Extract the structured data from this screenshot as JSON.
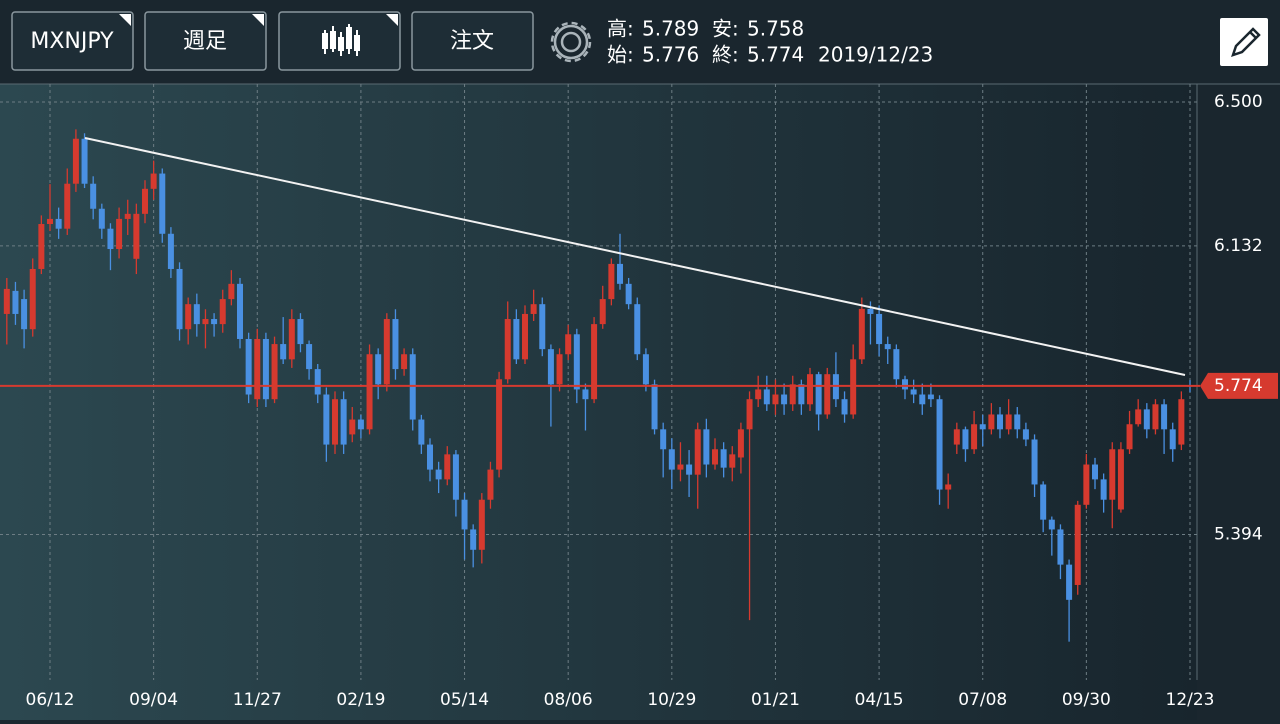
{
  "header": {
    "symbol": "MXNJPY",
    "period": "週足",
    "order": "注文",
    "high": {
      "label": "高:",
      "value": "5.789"
    },
    "low": {
      "label": "安:",
      "value": "5.758"
    },
    "open": {
      "label": "始:",
      "value": "5.776"
    },
    "close": {
      "label": "終:",
      "value": "5.774"
    },
    "date": "2019/12/23"
  },
  "chart_data": {
    "type": "candlestick",
    "categories": [
      null,
      null,
      null,
      null,
      null,
      "06/12",
      null,
      null,
      null,
      null,
      null,
      null,
      null,
      null,
      null,
      null,
      null,
      "09/04",
      null,
      null,
      null,
      null,
      null,
      null,
      null,
      null,
      null,
      null,
      null,
      "11/27",
      null,
      null,
      null,
      null,
      null,
      null,
      null,
      null,
      null,
      null,
      null,
      "02/19",
      null,
      null,
      null,
      null,
      null,
      null,
      null,
      null,
      null,
      null,
      null,
      "05/14",
      null,
      null,
      null,
      null,
      null,
      null,
      null,
      null,
      null,
      null,
      null,
      "08/06",
      null,
      null,
      null,
      null,
      null,
      null,
      null,
      null,
      null,
      null,
      null,
      "10/29",
      null,
      null,
      null,
      null,
      null,
      null,
      null,
      null,
      null,
      null,
      null,
      "01/21",
      null,
      null,
      null,
      null,
      null,
      null,
      null,
      null,
      null,
      null,
      null,
      "04/15",
      null,
      null,
      null,
      null,
      null,
      null,
      null,
      null,
      null,
      null,
      null,
      "07/08",
      null,
      null,
      null,
      null,
      null,
      null,
      null,
      null,
      null,
      null,
      null,
      "09/30",
      null,
      null,
      null,
      null,
      null,
      null,
      null,
      null,
      null,
      null,
      null,
      "12/23"
    ],
    "open": [
      5.958,
      6.017,
      5.996,
      5.919,
      6.073,
      6.188,
      6.201,
      6.176,
      6.291,
      6.406,
      6.291,
      6.227,
      6.176,
      6.124,
      6.201,
      6.099,
      6.214,
      6.278,
      6.317,
      6.163,
      6.073,
      5.919,
      5.983,
      5.932,
      5.945,
      5.932,
      5.996,
      6.035,
      5.894,
      5.74,
      5.894,
      5.74,
      5.881,
      5.842,
      5.945,
      5.881,
      5.817,
      5.752,
      5.624,
      5.74,
      5.65,
      5.688,
      5.663,
      5.855,
      5.778,
      5.945,
      5.817,
      5.855,
      5.688,
      5.624,
      5.56,
      5.535,
      5.599,
      5.483,
      5.407,
      5.355,
      5.483,
      5.56,
      5.791,
      5.945,
      5.842,
      5.958,
      5.983,
      5.868,
      5.778,
      5.855,
      5.906,
      5.765,
      5.74,
      5.932,
      5.996,
      6.086,
      6.035,
      5.983,
      5.855,
      5.778,
      5.663,
      5.612,
      5.56,
      5.573,
      5.547,
      5.663,
      5.573,
      5.612,
      5.565,
      5.591,
      5.663,
      5.74,
      5.765,
      5.727,
      5.752,
      5.727,
      5.778,
      5.727,
      5.804,
      5.701,
      5.804,
      5.74,
      5.701,
      5.842,
      5.971,
      5.958,
      5.881,
      5.868,
      5.791,
      5.765,
      5.752,
      5.752,
      5.74,
      5.509,
      5.624,
      5.663,
      5.612,
      5.676,
      5.663,
      5.701,
      5.663,
      5.701,
      5.663,
      5.637,
      5.522,
      5.432,
      5.407,
      5.317,
      5.265,
      5.47,
      5.573,
      5.535,
      5.483,
      5.458,
      5.612,
      5.676,
      5.714,
      5.663,
      5.727,
      5.663,
      5.624,
      5.776
    ],
    "high": [
      6.05,
      6.04,
      6.02,
      6.1,
      6.21,
      6.29,
      6.23,
      6.33,
      6.43,
      6.42,
      6.31,
      6.24,
      6.19,
      6.23,
      6.25,
      6.24,
      6.3,
      6.35,
      6.33,
      6.18,
      6.09,
      6.0,
      6.01,
      5.97,
      5.96,
      6.02,
      6.07,
      6.05,
      5.91,
      5.92,
      5.91,
      5.9,
      5.95,
      5.97,
      5.96,
      5.89,
      5.83,
      5.77,
      5.76,
      5.76,
      5.72,
      5.7,
      5.88,
      5.87,
      5.96,
      5.97,
      5.87,
      5.87,
      5.7,
      5.64,
      5.58,
      5.62,
      5.61,
      5.5,
      5.42,
      5.5,
      5.58,
      5.81,
      5.99,
      5.97,
      5.98,
      6.02,
      6.0,
      5.88,
      5.87,
      5.93,
      5.92,
      5.78,
      5.95,
      6.03,
      6.1,
      6.163,
      6.05,
      6.0,
      5.87,
      5.79,
      5.68,
      5.64,
      5.63,
      5.61,
      5.68,
      5.69,
      5.64,
      5.63,
      5.62,
      5.68,
      5.76,
      5.8,
      5.8,
      5.79,
      5.78,
      5.8,
      5.79,
      5.82,
      5.81,
      5.82,
      5.86,
      5.76,
      5.88,
      6.0,
      5.99,
      5.98,
      5.9,
      5.88,
      5.8,
      5.79,
      5.78,
      5.78,
      5.75,
      5.55,
      5.68,
      5.67,
      5.71,
      5.7,
      5.73,
      5.72,
      5.74,
      5.72,
      5.68,
      5.65,
      5.53,
      5.44,
      5.42,
      5.33,
      5.48,
      5.6,
      5.59,
      5.55,
      5.63,
      5.63,
      5.71,
      5.74,
      5.73,
      5.74,
      5.74,
      5.68,
      5.76,
      5.789
    ],
    "low": [
      5.88,
      5.93,
      5.87,
      5.9,
      6.06,
      6.17,
      6.15,
      6.16,
      6.27,
      6.28,
      6.2,
      6.15,
      6.07,
      6.1,
      6.16,
      6.06,
      6.19,
      6.25,
      6.14,
      6.05,
      5.89,
      5.88,
      5.9,
      5.87,
      5.9,
      5.91,
      5.98,
      5.87,
      5.73,
      5.72,
      5.72,
      5.73,
      5.83,
      5.82,
      5.86,
      5.79,
      5.73,
      5.58,
      5.6,
      5.6,
      5.63,
      5.64,
      5.65,
      5.74,
      5.76,
      5.79,
      5.8,
      5.66,
      5.6,
      5.53,
      5.5,
      5.52,
      5.44,
      5.33,
      5.31,
      5.32,
      5.46,
      5.54,
      5.78,
      5.83,
      5.83,
      5.94,
      5.85,
      5.67,
      5.76,
      5.84,
      5.73,
      5.66,
      5.73,
      5.92,
      5.98,
      6.02,
      5.97,
      5.84,
      5.76,
      5.65,
      5.54,
      5.51,
      5.53,
      5.49,
      5.46,
      5.54,
      5.56,
      5.54,
      5.53,
      5.55,
      5.175,
      5.72,
      5.71,
      5.7,
      5.7,
      5.71,
      5.7,
      5.71,
      5.66,
      5.69,
      5.72,
      5.68,
      5.69,
      5.83,
      5.88,
      5.85,
      5.83,
      5.77,
      5.74,
      5.73,
      5.7,
      5.72,
      5.47,
      5.46,
      5.6,
      5.58,
      5.6,
      5.62,
      5.65,
      5.64,
      5.65,
      5.64,
      5.62,
      5.49,
      5.4,
      5.34,
      5.28,
      5.12,
      5.24,
      5.46,
      5.51,
      5.45,
      5.41,
      5.45,
      5.6,
      5.67,
      5.64,
      5.65,
      5.6,
      5.58,
      5.61,
      5.758
    ],
    "close": [
      6.022,
      5.958,
      5.919,
      6.073,
      6.188,
      6.201,
      6.176,
      6.291,
      6.406,
      6.291,
      6.227,
      6.176,
      6.124,
      6.201,
      6.214,
      6.214,
      6.278,
      6.317,
      6.163,
      6.073,
      5.919,
      5.983,
      5.932,
      5.945,
      5.932,
      5.996,
      6.035,
      5.894,
      5.752,
      5.894,
      5.74,
      5.881,
      5.842,
      5.945,
      5.881,
      5.817,
      5.752,
      5.624,
      5.74,
      5.624,
      5.688,
      5.663,
      5.855,
      5.778,
      5.945,
      5.817,
      5.855,
      5.688,
      5.624,
      5.56,
      5.535,
      5.599,
      5.483,
      5.407,
      5.355,
      5.483,
      5.56,
      5.791,
      5.945,
      5.842,
      5.958,
      5.983,
      5.868,
      5.778,
      5.855,
      5.906,
      5.765,
      5.74,
      5.932,
      5.996,
      6.086,
      6.035,
      5.983,
      5.855,
      5.778,
      5.663,
      5.612,
      5.56,
      5.573,
      5.547,
      5.663,
      5.573,
      5.612,
      5.565,
      5.599,
      5.663,
      5.74,
      5.765,
      5.727,
      5.752,
      5.727,
      5.778,
      5.727,
      5.804,
      5.701,
      5.804,
      5.74,
      5.701,
      5.842,
      5.971,
      5.958,
      5.881,
      5.868,
      5.791,
      5.765,
      5.752,
      5.727,
      5.74,
      5.509,
      5.522,
      5.663,
      5.612,
      5.676,
      5.663,
      5.701,
      5.663,
      5.701,
      5.663,
      5.637,
      5.522,
      5.432,
      5.407,
      5.317,
      5.227,
      5.47,
      5.573,
      5.535,
      5.483,
      5.612,
      5.612,
      5.676,
      5.714,
      5.663,
      5.727,
      5.663,
      5.612,
      5.74,
      5.774
    ],
    "up_color": "#d63a2f",
    "down_color": "#4a90e2",
    "ylim": [
      5.022,
      6.546
    ],
    "yticks": [
      {
        "value": 6.5,
        "label": "6.500"
      },
      6.132,
      5.394
    ],
    "last_price": 5.774,
    "last_price_color": "#d63a2f",
    "grid": true
  }
}
